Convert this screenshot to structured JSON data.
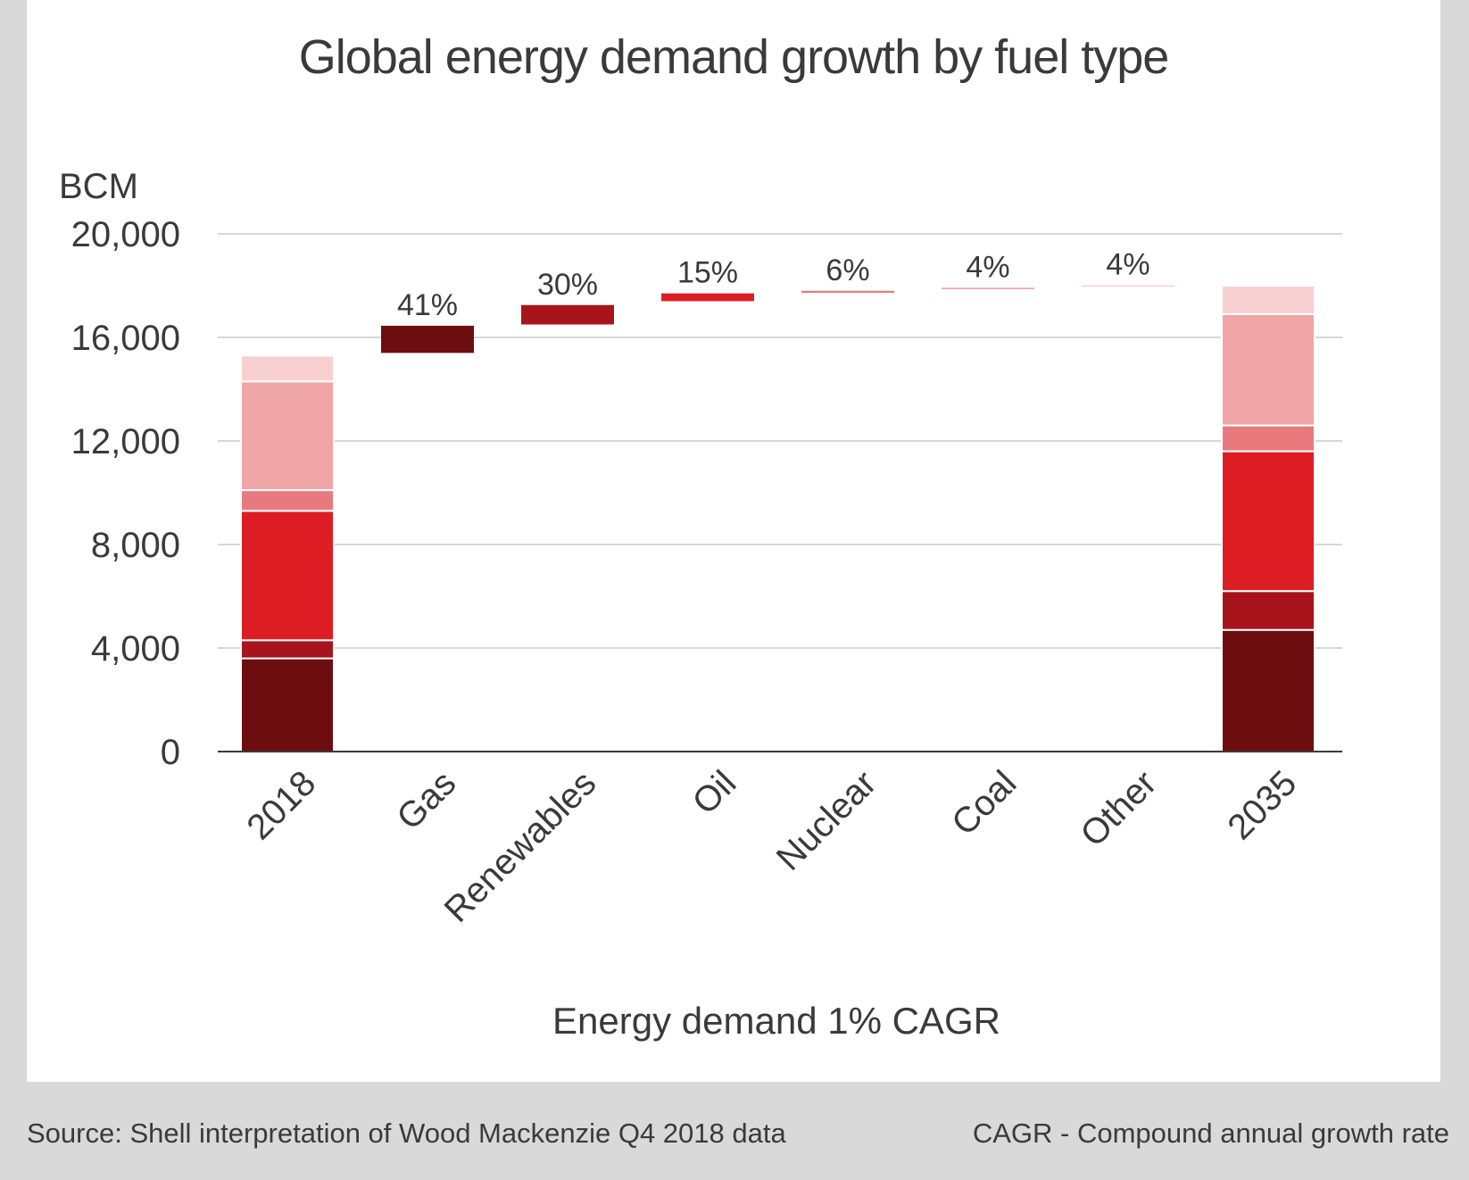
{
  "chart_data": {
    "type": "bar",
    "subtype": "waterfall-stacked",
    "title": "Global energy demand growth by fuel type",
    "unit_label": "BCM",
    "xlabel": "Energy demand 1% CAGR",
    "ylim": [
      0,
      20000
    ],
    "yticks": [
      0,
      4000,
      8000,
      12000,
      16000,
      20000
    ],
    "ytick_labels": [
      "0",
      "4,000",
      "8,000",
      "12,000",
      "16,000",
      "20,000"
    ],
    "grid": true,
    "categories": [
      "2018",
      "Gas",
      "Renewables",
      "Oil",
      "Nuclear",
      "Coal",
      "Other",
      "2035"
    ],
    "totals": [
      {
        "category": "2018",
        "segments": [
          {
            "fuel": "Gas",
            "value": 3600,
            "color": "#6e0d10"
          },
          {
            "fuel": "Renewables",
            "value": 700,
            "color": "#a8141b"
          },
          {
            "fuel": "Oil",
            "value": 5000,
            "color": "#dd1d24"
          },
          {
            "fuel": "Nuclear",
            "value": 800,
            "color": "#e87a7e"
          },
          {
            "fuel": "Coal",
            "value": 4200,
            "color": "#f0a5a7"
          },
          {
            "fuel": "Other",
            "value": 1000,
            "color": "#f8d0d1"
          }
        ]
      },
      {
        "category": "2035",
        "segments": [
          {
            "fuel": "Gas",
            "value": 4700,
            "color": "#6e0d10"
          },
          {
            "fuel": "Renewables",
            "value": 1500,
            "color": "#a8141b"
          },
          {
            "fuel": "Oil",
            "value": 5400,
            "color": "#dd1d24"
          },
          {
            "fuel": "Nuclear",
            "value": 1000,
            "color": "#e87a7e"
          },
          {
            "fuel": "Coal",
            "value": 4300,
            "color": "#f0a5a7"
          },
          {
            "fuel": "Other",
            "value": 1100,
            "color": "#f8d0d1"
          }
        ]
      }
    ],
    "increments": [
      {
        "category": "Gas",
        "start": 15400,
        "end": 16450,
        "label": "41%",
        "color": "#6e0d10"
      },
      {
        "category": "Renewables",
        "start": 16500,
        "end": 17250,
        "label": "30%",
        "color": "#a8141b"
      },
      {
        "category": "Oil",
        "start": 17400,
        "end": 17700,
        "label": "15%",
        "color": "#dd1d24"
      },
      {
        "category": "Nuclear",
        "start": 17720,
        "end": 17800,
        "label": "6%",
        "color": "#e87a7e"
      },
      {
        "category": "Coal",
        "start": 17860,
        "end": 17920,
        "label": "4%",
        "color": "#f0a5a7"
      },
      {
        "category": "Other",
        "start": 17960,
        "end": 18010,
        "label": "4%",
        "color": "#f8d0d1"
      }
    ]
  },
  "footer": {
    "source": "Source: Shell interpretation of Wood Mackenzie Q4 2018 data",
    "note": "CAGR - Compound annual growth rate"
  }
}
